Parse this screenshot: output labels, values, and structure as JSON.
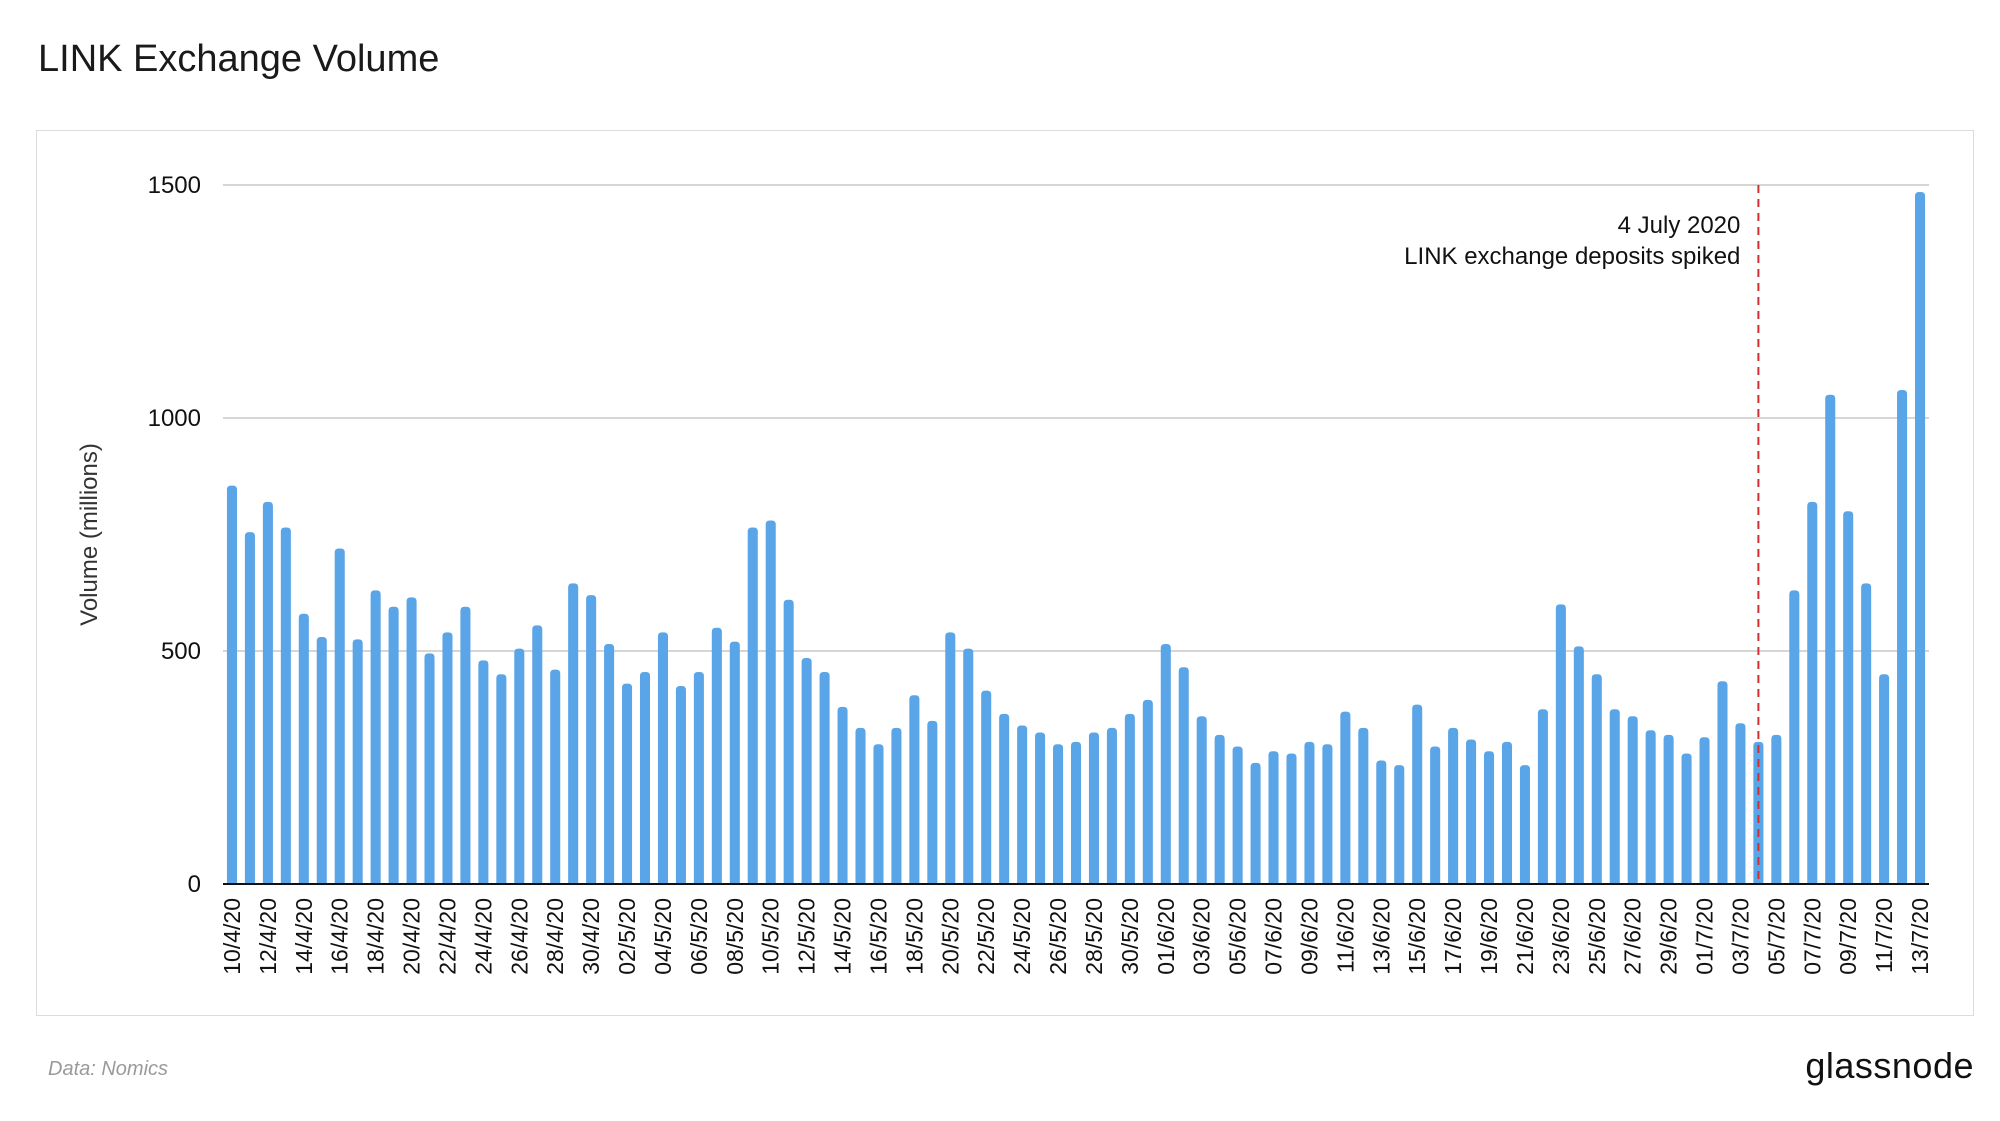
{
  "title": "LINK Exchange Volume",
  "source": "Data: Nomics",
  "brand": "glassnode",
  "colors": {
    "bar": "#5aa5e8",
    "grid": "#c8c8c8",
    "axis": "#111111",
    "annotation_line": "#d32f2f"
  },
  "chart_data": {
    "type": "bar",
    "ylabel": "Volume (millions)",
    "xlabel": "",
    "ylim": [
      0,
      1500
    ],
    "yticks": [
      0,
      500,
      1000,
      1500
    ],
    "grid": true,
    "categories": [
      "10/4/20",
      "11/4/20",
      "12/4/20",
      "13/4/20",
      "14/4/20",
      "15/4/20",
      "16/4/20",
      "17/4/20",
      "18/4/20",
      "19/4/20",
      "20/4/20",
      "21/4/20",
      "22/4/20",
      "23/4/20",
      "24/4/20",
      "25/4/20",
      "26/4/20",
      "27/4/20",
      "28/4/20",
      "29/4/20",
      "30/4/20",
      "01/5/20",
      "02/5/20",
      "03/5/20",
      "04/5/20",
      "05/5/20",
      "06/5/20",
      "07/5/20",
      "08/5/20",
      "09/5/20",
      "10/5/20",
      "11/5/20",
      "12/5/20",
      "13/5/20",
      "14/5/20",
      "15/5/20",
      "16/5/20",
      "17/5/20",
      "18/5/20",
      "19/5/20",
      "20/5/20",
      "21/5/20",
      "22/5/20",
      "23/5/20",
      "24/5/20",
      "25/5/20",
      "26/5/20",
      "27/5/20",
      "28/5/20",
      "29/5/20",
      "30/5/20",
      "31/5/20",
      "01/6/20",
      "02/6/20",
      "03/6/20",
      "04/6/20",
      "05/6/20",
      "06/6/20",
      "07/6/20",
      "08/6/20",
      "09/6/20",
      "10/6/20",
      "11/6/20",
      "12/6/20",
      "13/6/20",
      "14/6/20",
      "15/6/20",
      "16/6/20",
      "17/6/20",
      "18/6/20",
      "19/6/20",
      "20/6/20",
      "21/6/20",
      "22/6/20",
      "23/6/20",
      "24/6/20",
      "25/6/20",
      "26/6/20",
      "27/6/20",
      "28/6/20",
      "29/6/20",
      "30/6/20",
      "01/7/20",
      "02/7/20",
      "03/7/20",
      "04/7/20",
      "05/7/20",
      "06/7/20",
      "07/7/20",
      "08/7/20",
      "09/7/20",
      "10/7/20",
      "11/7/20",
      "12/7/20",
      "13/7/20"
    ],
    "tick_labels": [
      "10/4/20",
      "12/4/20",
      "14/4/20",
      "16/4/20",
      "18/4/20",
      "20/4/20",
      "22/4/20",
      "24/4/20",
      "26/4/20",
      "28/4/20",
      "30/4/20",
      "02/5/20",
      "04/5/20",
      "06/5/20",
      "08/5/20",
      "10/5/20",
      "12/5/20",
      "14/5/20",
      "16/5/20",
      "18/5/20",
      "20/5/20",
      "22/5/20",
      "24/5/20",
      "26/5/20",
      "28/5/20",
      "30/5/20",
      "01/6/20",
      "03/6/20",
      "05/6/20",
      "07/6/20",
      "09/6/20",
      "11/6/20",
      "13/6/20",
      "15/6/20",
      "17/6/20",
      "19/6/20",
      "21/6/20",
      "23/6/20",
      "25/6/20",
      "27/6/20",
      "29/6/20",
      "01/7/20",
      "03/7/20",
      "05/7/20",
      "07/7/20",
      "09/7/20",
      "11/7/20",
      "13/7/20"
    ],
    "values": [
      855,
      755,
      820,
      765,
      580,
      530,
      720,
      525,
      630,
      595,
      615,
      495,
      540,
      595,
      480,
      450,
      505,
      555,
      460,
      645,
      620,
      515,
      430,
      455,
      540,
      425,
      455,
      550,
      520,
      765,
      780,
      610,
      485,
      455,
      380,
      335,
      300,
      335,
      405,
      350,
      540,
      505,
      415,
      365,
      340,
      325,
      300,
      305,
      325,
      335,
      365,
      395,
      515,
      465,
      360,
      320,
      295,
      260,
      285,
      280,
      305,
      300,
      370,
      335,
      265,
      255,
      385,
      295,
      335,
      310,
      285,
      305,
      255,
      375,
      600,
      510,
      450,
      375,
      360,
      330,
      320,
      280,
      315,
      435,
      345,
      305,
      320,
      630,
      820,
      1050,
      800,
      645,
      450,
      1060,
      1485
    ],
    "annotation": {
      "at": "04/7/20",
      "lines": [
        "4 July 2020",
        "LINK exchange deposits spiked"
      ]
    }
  }
}
